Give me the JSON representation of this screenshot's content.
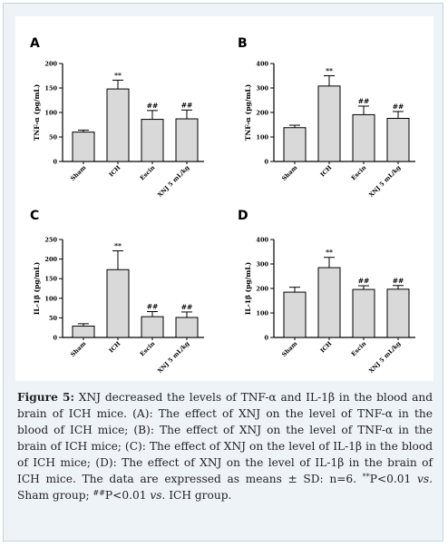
{
  "chart_data": [
    {
      "type": "bar",
      "panel_label": "A",
      "categories": [
        "Sham",
        "ICH",
        "Escin",
        "XNJ 5 mL/kg"
      ],
      "values": [
        60,
        148,
        86,
        87
      ],
      "errors": [
        4,
        18,
        18,
        18
      ],
      "annotations": [
        "",
        "**",
        "##",
        "##"
      ],
      "ylabel": "TNF-α (pg/mL)",
      "ylim": [
        0,
        200
      ],
      "yticks": [
        0,
        50,
        100,
        150,
        200
      ],
      "bar_color": "#d9d9d9"
    },
    {
      "type": "bar",
      "panel_label": "B",
      "categories": [
        "Sham",
        "ICH",
        "Escin",
        "XNJ 5 mL/kg"
      ],
      "values": [
        138,
        308,
        191,
        176
      ],
      "errors": [
        10,
        42,
        35,
        28
      ],
      "annotations": [
        "",
        "**",
        "##",
        "##"
      ],
      "ylabel": "TNF-α (pg/mL)",
      "ylim": [
        0,
        400
      ],
      "yticks": [
        0,
        100,
        200,
        300,
        400
      ],
      "bar_color": "#d9d9d9"
    },
    {
      "type": "bar",
      "panel_label": "C",
      "categories": [
        "Sham",
        "ICH",
        "Escin",
        "XNJ 5 mL/kg"
      ],
      "values": [
        29,
        173,
        53,
        51
      ],
      "errors": [
        6,
        48,
        13,
        14
      ],
      "annotations": [
        "",
        "**",
        "##",
        "##"
      ],
      "ylabel": "IL-1β (pg/mL)",
      "ylim": [
        0,
        250
      ],
      "yticks": [
        0,
        50,
        100,
        150,
        200,
        250
      ],
      "bar_color": "#d9d9d9"
    },
    {
      "type": "bar",
      "panel_label": "D",
      "categories": [
        "Sham",
        "ICH",
        "Escin",
        "XNJ 5 mL/kg"
      ],
      "values": [
        185,
        285,
        196,
        197
      ],
      "errors": [
        20,
        42,
        15,
        15
      ],
      "annotations": [
        "",
        "**",
        "##",
        "##"
      ],
      "ylabel": "IL-1β (pg/mL)",
      "ylim": [
        0,
        400
      ],
      "yticks": [
        0,
        100,
        200,
        300,
        400
      ],
      "bar_color": "#d9d9d9"
    }
  ],
  "caption": {
    "label": "Figure 5:",
    "text1": " XNJ decreased the levels of TNF-α and IL-1β in the blood and brain of ICH mice. (A): The effect of XNJ on the level of TNF-α in the blood of ICH mice; (B): The effect of XNJ on the level of TNF-α in the brain of ICH mice; (C): The effect of XNJ on the level of IL-1β in the blood of ICH mice; (D): The effect of XNJ on the level of IL-1β in the brain of ICH mice. The data are expressed as means ± SD: n=6. ",
    "sup1": "**",
    "text2": "P<0.01 ",
    "vs1": "vs.",
    "text3": " Sham group; ",
    "sup2": "##",
    "text4": "P<0.01 ",
    "vs2": "vs.",
    "text5": " ICH group."
  }
}
